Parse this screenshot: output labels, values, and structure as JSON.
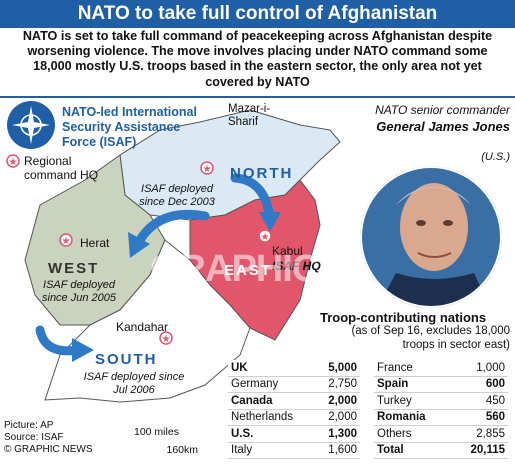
{
  "header": {
    "title": "NATO to take full control of Afghanistan"
  },
  "intro": {
    "text": "NATO is set to take full command of peacekeeping across Afghanistan despite worsening violence. The move involves placing under NATO command some 18,000 mostly U.S. troops based in the eastern sector, the only area not yet covered by NATO"
  },
  "legend": {
    "isaf_label": "NATO-led International Security Assistance Force (ISAF)",
    "hq_label": "Regional command HQ"
  },
  "map": {
    "cities": {
      "mazar": "Mazar-i-Sharif",
      "herat": "Herat",
      "kandahar": "Kandahar",
      "kabul": "Kabul",
      "kabul_hq": "ISAF HQ"
    },
    "regions": {
      "north": {
        "name": "NORTH",
        "note": "ISAF deployed since Dec 2003"
      },
      "west": {
        "name": "WEST",
        "note": "ISAF deployed since Jun 2005"
      },
      "south": {
        "name": "SOUTH",
        "note": "ISAF deployed since Jul 2006"
      },
      "east": {
        "name": "EAST"
      }
    },
    "colors": {
      "north": "#dbe9f4",
      "west": "#c9d3bd",
      "south": "#ffffff",
      "east": "#e2566c",
      "arrow": "#2f79c6"
    }
  },
  "commander": {
    "role": "NATO senior commander",
    "name": "General James Jones",
    "country": "(U.S.)"
  },
  "troops": {
    "title": "Troop-contributing nations",
    "note": "(as of Sep 16, excludes 18,000 troops in sector east)",
    "left": [
      {
        "country": "UK",
        "value": "5,000",
        "bold": true
      },
      {
        "country": "Germany",
        "value": "2,750",
        "bold": false
      },
      {
        "country": "Canada",
        "value": "2,000",
        "bold": true
      },
      {
        "country": "Netherlands",
        "value": "2,000",
        "bold": false
      },
      {
        "country": "U.S.",
        "value": "1,300",
        "bold": true
      },
      {
        "country": "Italy",
        "value": "1,600",
        "bold": false
      }
    ],
    "right": [
      {
        "country": "France",
        "value": "1,000",
        "bold": false
      },
      {
        "country": "Spain",
        "value": "600",
        "bold": true
      },
      {
        "country": "Turkey",
        "value": "450",
        "bold": false
      },
      {
        "country": "Romania",
        "value": "560",
        "bold": true
      },
      {
        "country": "Others",
        "value": "2,855",
        "bold": false
      },
      {
        "country": "Total",
        "value": "20,115",
        "bold": true
      }
    ]
  },
  "footer": {
    "picture": "Picture: AP",
    "source": "Source: ISAF",
    "copyright": "© GRAPHIC NEWS"
  },
  "scale": {
    "miles": "100 miles",
    "km": "160km"
  },
  "watermark": "GRAPHIC NEWS"
}
